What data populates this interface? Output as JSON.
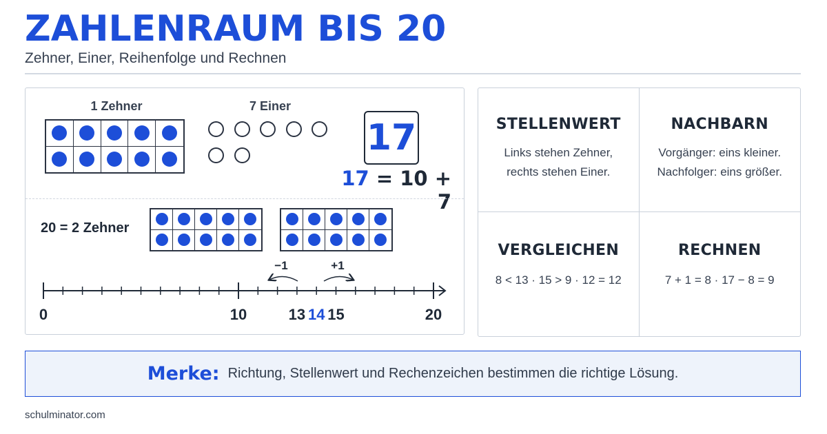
{
  "header": {
    "title": "ZAHLENRAUM BIS 20",
    "subtitle": "Zehner, Einer, Reihenfolge und Rechnen"
  },
  "place_value": {
    "tens_label": "1 Zehner",
    "ones_label": "7 Einer",
    "tens_count": 1,
    "ones_count": 7,
    "number": "17",
    "equation_highlight": "17",
    "equation_rest": "= 10 + 7"
  },
  "twenty": {
    "label": "20 = 2 Zehner",
    "frames": 2
  },
  "number_line": {
    "min": 0,
    "max": 20,
    "labels": [
      "0",
      "10",
      "13",
      "14",
      "15",
      "20"
    ],
    "highlight": "14",
    "minus_label": "−1",
    "plus_label": "+1"
  },
  "cards": [
    {
      "title": "STELLENWERT",
      "lines": [
        "Links stehen Zehner,",
        "rechts stehen Einer."
      ]
    },
    {
      "title": "NACHBARN",
      "lines": [
        "Vorgänger: eins kleiner.",
        "Nachfolger: eins größer."
      ]
    },
    {
      "title": "VERGLEICHEN",
      "lines": [
        "8 < 13 · 15 > 9 · 12 = 12"
      ]
    },
    {
      "title": "RECHNEN",
      "lines": [
        "7 + 1 = 8 · 17 − 8 = 9"
      ]
    }
  ],
  "merke": {
    "label": "Merke:",
    "text": "Richtung, Stellenwert und Rechenzeichen bestimmen die richtige Lösung."
  },
  "footer": {
    "source": "schulminator.com"
  },
  "colors": {
    "accent": "#1d4ed8",
    "ink": "#1f2937",
    "border": "#c9d0da"
  }
}
